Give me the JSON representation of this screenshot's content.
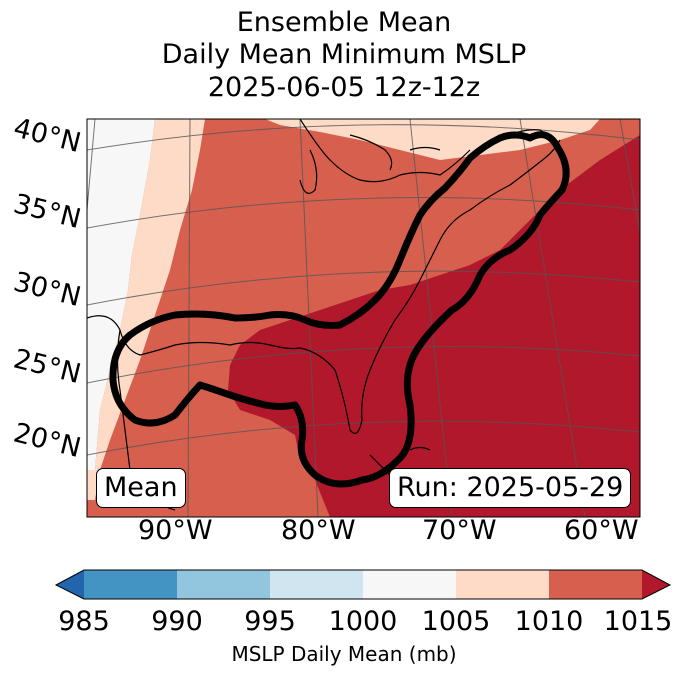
{
  "title": {
    "line1": "Ensemble Mean",
    "line2": "Daily Mean Minimum MSLP",
    "line3": "2025-06-05 12z-12z"
  },
  "map": {
    "lat_labels": [
      "40°N",
      "35°N",
      "30°N",
      "25°N",
      "20°N"
    ],
    "lon_labels": [
      "90°W",
      "80°W",
      "70°W",
      "60°W"
    ],
    "mean_box": "Mean",
    "run_box": "Run: 2025-05-29"
  },
  "colorbar": {
    "ticks": [
      "985",
      "990",
      "995",
      "1000",
      "1005",
      "1010",
      "1015"
    ],
    "label": "MSLP Daily Mean (mb)",
    "colors": [
      "#2166ac",
      "#4393c3",
      "#92c5de",
      "#d1e5f0",
      "#f7f7f7",
      "#fddbc7",
      "#d6604d",
      "#b2182b"
    ]
  }
}
